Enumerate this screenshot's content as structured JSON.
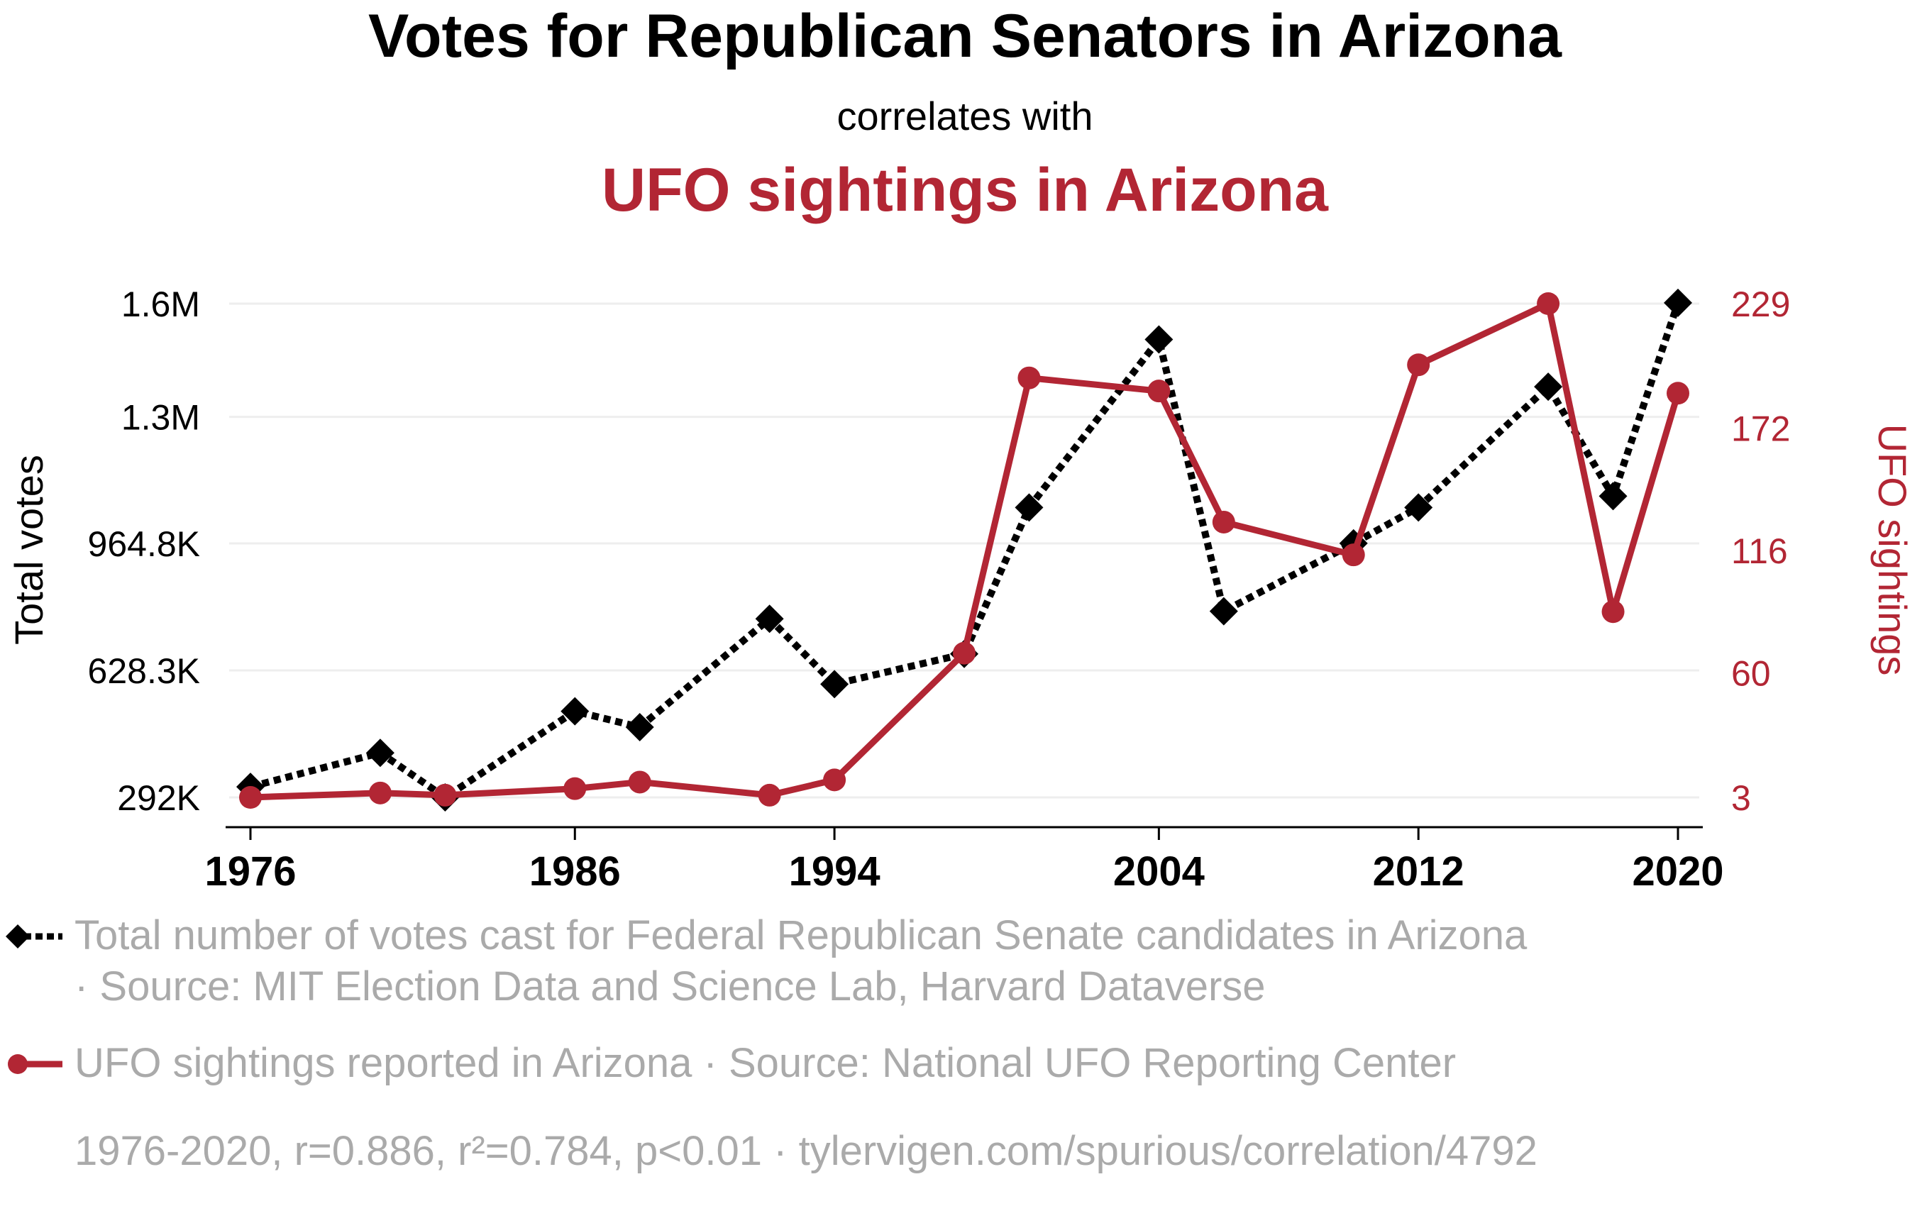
{
  "chart_data": {
    "type": "line",
    "title": "Votes for Republican Senators in Arizona",
    "subtitle": "correlates with",
    "title2": "UFO sightings in Arizona",
    "ylabel_left": "Total votes",
    "ylabel_right": "UFO sightings",
    "x": [
      1976,
      1980,
      1982,
      1986,
      1988,
      1992,
      1994,
      1998,
      2000,
      2004,
      2006,
      2010,
      2012,
      2016,
      2018,
      2020
    ],
    "series": [
      {
        "name": "Total number of votes cast for Federal Republican Senate candidates in Arizona",
        "axis": "left",
        "values": [
          320000,
          410000,
          292000,
          520000,
          478000,
          765000,
          592000,
          672000,
          1060000,
          1505000,
          785000,
          965000,
          1060000,
          1380000,
          1090000,
          1602000
        ]
      },
      {
        "name": "UFO sightings reported in Arizona",
        "axis": "right",
        "values": [
          3,
          5,
          4,
          7,
          10,
          4,
          11,
          69,
          195,
          189,
          129,
          114,
          201,
          229,
          88,
          188
        ]
      }
    ],
    "x_ticks": [
      {
        "value": 1976,
        "label": "1976"
      },
      {
        "value": 1986,
        "label": "1986"
      },
      {
        "value": 1994,
        "label": "1994"
      },
      {
        "value": 2004,
        "label": "2004"
      },
      {
        "value": 2012,
        "label": "2012"
      },
      {
        "value": 2020,
        "label": "2020"
      }
    ],
    "y_ticks_left": [
      {
        "value": 292000,
        "label": "292K"
      },
      {
        "value": 628300,
        "label": "628.3K"
      },
      {
        "value": 964800,
        "label": "964.8K"
      },
      {
        "value": 1300000,
        "label": "1.3M"
      },
      {
        "value": 1600000,
        "label": "1.6M"
      }
    ],
    "y_ticks_right": [
      {
        "value": 3,
        "label": "3"
      },
      {
        "value": 60,
        "label": "60"
      },
      {
        "value": 116,
        "label": "116"
      },
      {
        "value": 172,
        "label": "172"
      },
      {
        "value": 229,
        "label": "229"
      }
    ],
    "xlim": [
      1976,
      2020
    ],
    "ylim_left": [
      292000,
      1600000
    ],
    "ylim_right": [
      3,
      229
    ],
    "grid": true,
    "legend": [
      {
        "marker": "black-dotted-diamond",
        "lines": [
          "Total number of votes cast for Federal Republican Senate candidates in Arizona",
          "· Source: MIT Election Data and Science Lab, Harvard Dataverse"
        ]
      },
      {
        "marker": "red-solid-circle",
        "lines": [
          "UFO sightings reported in Arizona · Source: National UFO Reporting Center"
        ]
      }
    ],
    "footer": "1976-2020, r=0.886, r²=0.784, p<0.01 · tylervigen.com/spurious/correlation/4792",
    "colors": {
      "series1": "#000000",
      "series2": "#b22634",
      "title2": "#b22634",
      "right_axis": "#b22634",
      "legend_text": "#aaaaaa",
      "grid": "#eeeeee"
    }
  }
}
